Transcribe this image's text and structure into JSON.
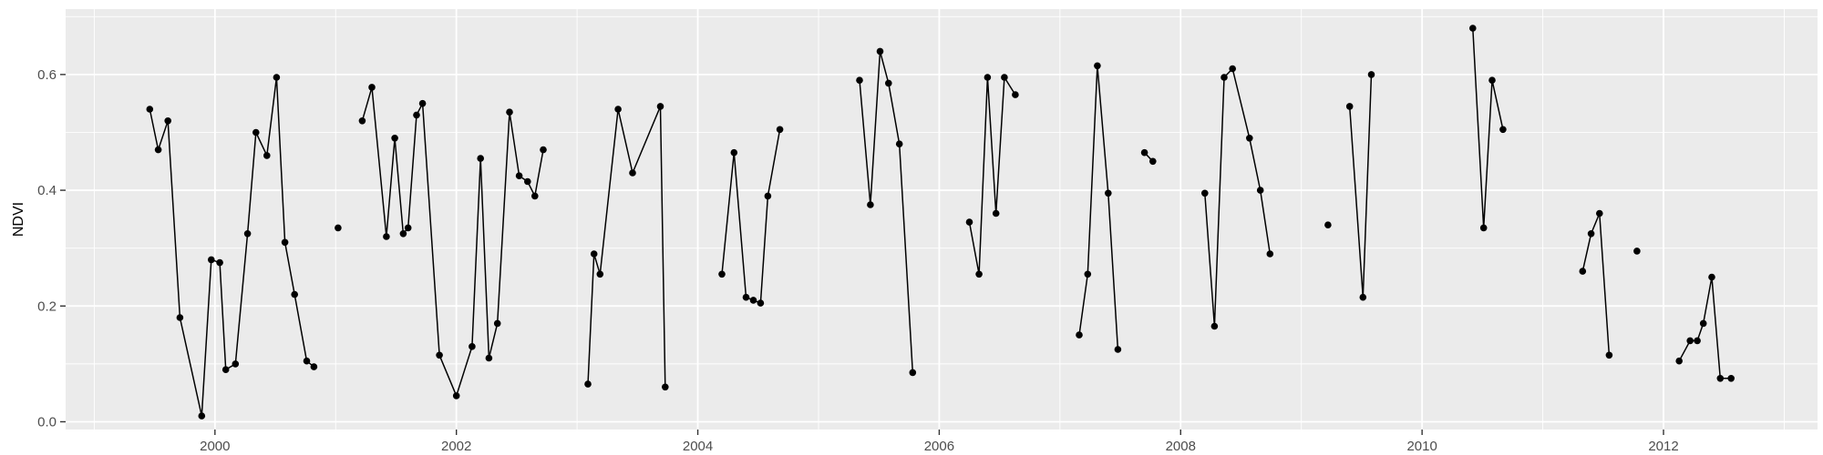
{
  "chart_data": {
    "type": "line",
    "title": "",
    "xlabel": "",
    "ylabel": "NDVI",
    "x_domain": [
      1998.763,
      2013.276
    ],
    "y_domain": [
      -0.0134,
      0.713
    ],
    "x_major_ticks": [
      2000,
      2002,
      2004,
      2006,
      2008,
      2010,
      2012
    ],
    "x_tick_labels": [
      "2000",
      "2002",
      "2004",
      "2006",
      "2008",
      "2010",
      "2012"
    ],
    "x_minor_ticks": [
      1999,
      2001,
      2003,
      2005,
      2007,
      2009,
      2011,
      2013
    ],
    "y_major_ticks": [
      0.0,
      0.2,
      0.4,
      0.6
    ],
    "y_tick_labels": [
      "0.0",
      "0.2",
      "0.4",
      "0.6"
    ],
    "y_minor_ticks": [
      0.1,
      0.3,
      0.5,
      0.7
    ],
    "grid": true,
    "legend": "none",
    "colors": {
      "panel_bg": "#EBEBEB",
      "grid_major": "#FFFFFF",
      "grid_minor": "#FFFFFF",
      "tick_mark": "#333333",
      "tick_label": "#4D4D4D",
      "line": "#000000",
      "point": "#000000"
    },
    "segments": [
      [
        [
          1999.46,
          0.54
        ],
        [
          1999.53,
          0.47
        ],
        [
          1999.61,
          0.52
        ],
        [
          1999.71,
          0.18
        ],
        [
          1999.89,
          0.01
        ],
        [
          1999.97,
          0.28
        ],
        [
          2000.04,
          0.275
        ],
        [
          2000.09,
          0.09
        ],
        [
          2000.17,
          0.1
        ],
        [
          2000.27,
          0.325
        ],
        [
          2000.34,
          0.5
        ],
        [
          2000.43,
          0.46
        ],
        [
          2000.51,
          0.595
        ],
        [
          2000.58,
          0.31
        ],
        [
          2000.66,
          0.22
        ],
        [
          2000.76,
          0.105
        ],
        [
          2000.82,
          0.095
        ]
      ],
      [
        [
          2001.02,
          0.335
        ]
      ],
      [
        [
          2001.22,
          0.52
        ],
        [
          2001.3,
          0.578
        ],
        [
          2001.42,
          0.32
        ],
        [
          2001.49,
          0.49
        ],
        [
          2001.56,
          0.325
        ],
        [
          2001.6,
          0.335
        ],
        [
          2001.67,
          0.53
        ],
        [
          2001.72,
          0.55
        ],
        [
          2001.86,
          0.115
        ],
        [
          2002.0,
          0.045
        ],
        [
          2002.13,
          0.13
        ],
        [
          2002.2,
          0.455
        ],
        [
          2002.27,
          0.11
        ],
        [
          2002.34,
          0.17
        ],
        [
          2002.44,
          0.535
        ],
        [
          2002.52,
          0.425
        ],
        [
          2002.59,
          0.415
        ],
        [
          2002.65,
          0.39
        ],
        [
          2002.72,
          0.47
        ]
      ],
      [
        [
          2003.09,
          0.065
        ],
        [
          2003.14,
          0.29
        ],
        [
          2003.19,
          0.255
        ],
        [
          2003.34,
          0.54
        ],
        [
          2003.46,
          0.43
        ],
        [
          2003.69,
          0.545
        ],
        [
          2003.73,
          0.06
        ]
      ],
      [
        [
          2004.2,
          0.255
        ],
        [
          2004.3,
          0.465
        ],
        [
          2004.4,
          0.215
        ],
        [
          2004.46,
          0.21
        ],
        [
          2004.52,
          0.205
        ],
        [
          2004.58,
          0.39
        ],
        [
          2004.68,
          0.505
        ]
      ],
      [
        [
          2005.34,
          0.59
        ],
        [
          2005.43,
          0.375
        ],
        [
          2005.51,
          0.64
        ],
        [
          2005.58,
          0.585
        ],
        [
          2005.67,
          0.48
        ],
        [
          2005.78,
          0.085
        ]
      ],
      [
        [
          2006.25,
          0.345
        ],
        [
          2006.33,
          0.255
        ],
        [
          2006.4,
          0.595
        ],
        [
          2006.47,
          0.36
        ],
        [
          2006.54,
          0.595
        ],
        [
          2006.63,
          0.565
        ]
      ],
      [
        [
          2007.16,
          0.15
        ],
        [
          2007.23,
          0.255
        ],
        [
          2007.31,
          0.615
        ],
        [
          2007.4,
          0.395
        ],
        [
          2007.48,
          0.125
        ]
      ],
      [
        [
          2007.7,
          0.465
        ],
        [
          2007.77,
          0.45
        ]
      ],
      [
        [
          2008.2,
          0.395
        ],
        [
          2008.28,
          0.165
        ],
        [
          2008.36,
          0.595
        ],
        [
          2008.43,
          0.61
        ],
        [
          2008.57,
          0.49
        ],
        [
          2008.66,
          0.4
        ],
        [
          2008.74,
          0.29
        ]
      ],
      [
        [
          2009.22,
          0.34
        ]
      ],
      [
        [
          2009.4,
          0.545
        ],
        [
          2009.51,
          0.215
        ],
        [
          2009.58,
          0.6
        ]
      ],
      [
        [
          2010.42,
          0.68
        ],
        [
          2010.51,
          0.335
        ],
        [
          2010.58,
          0.59
        ],
        [
          2010.67,
          0.505
        ]
      ],
      [
        [
          2011.33,
          0.26
        ],
        [
          2011.4,
          0.325
        ],
        [
          2011.47,
          0.36
        ],
        [
          2011.55,
          0.115
        ]
      ],
      [
        [
          2011.78,
          0.295
        ]
      ],
      [
        [
          2012.13,
          0.105
        ],
        [
          2012.22,
          0.14
        ],
        [
          2012.28,
          0.14
        ],
        [
          2012.33,
          0.17
        ],
        [
          2012.4,
          0.25
        ],
        [
          2012.47,
          0.075
        ],
        [
          2012.56,
          0.075
        ]
      ]
    ]
  }
}
